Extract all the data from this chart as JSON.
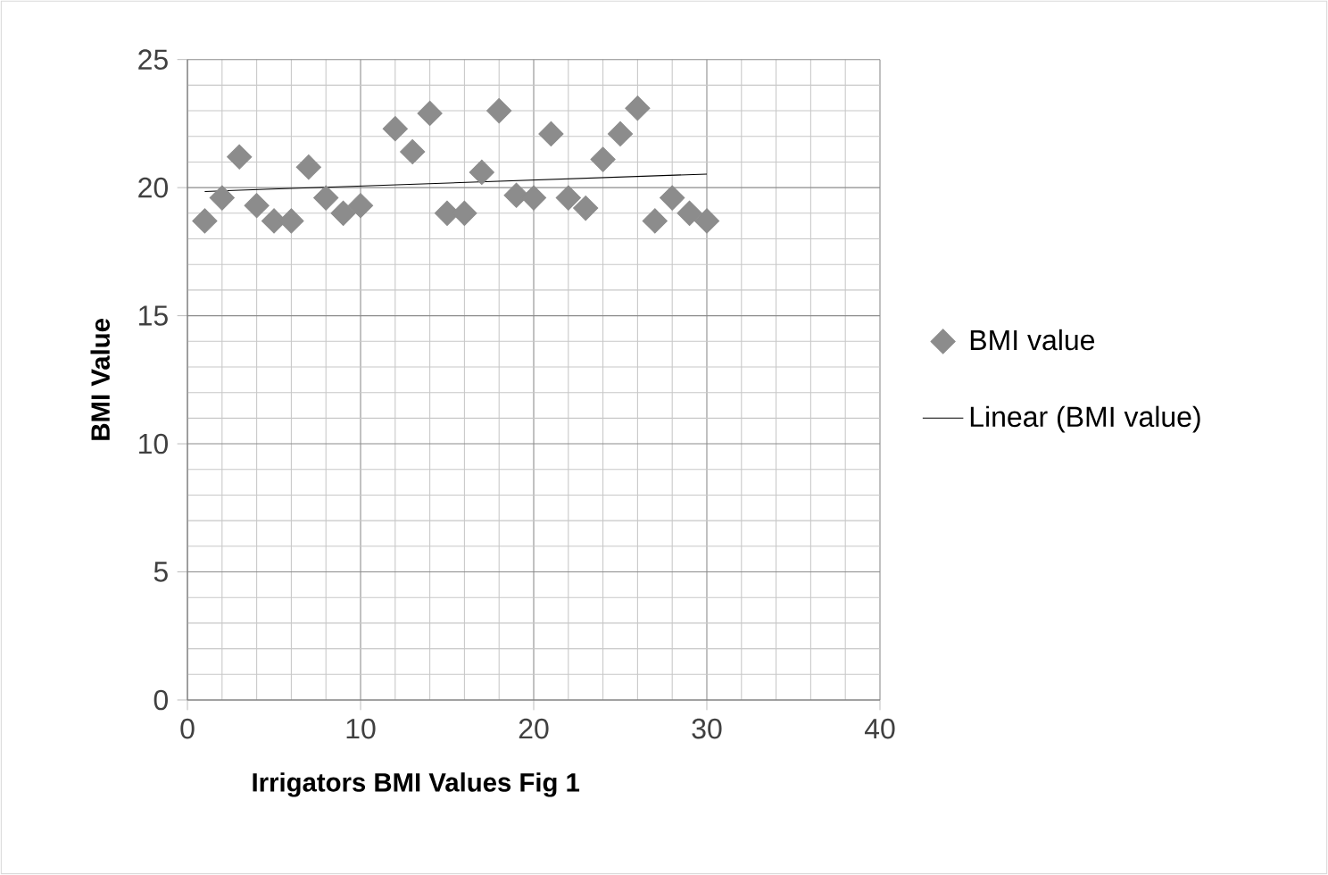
{
  "chart_data": {
    "type": "scatter",
    "xlabel": "Irrigators BMI Values Fig 1",
    "ylabel": "BMI Value",
    "xlim": [
      0,
      40
    ],
    "ylim": [
      0,
      25
    ],
    "xticks": [
      0,
      10,
      20,
      30,
      40
    ],
    "yticks": [
      0,
      5,
      10,
      15,
      20,
      25
    ],
    "grid": true,
    "legend": "right",
    "series": [
      {
        "name": "BMI value",
        "marker": "diamond",
        "color": "#8c8c8c",
        "x": [
          1,
          2,
          3,
          4,
          5,
          6,
          7,
          8,
          9,
          10,
          12,
          13,
          14,
          15,
          16,
          17,
          18,
          19,
          20,
          21,
          22,
          23,
          24,
          25,
          26,
          27,
          28,
          29,
          30
        ],
        "values": [
          18.7,
          19.6,
          21.2,
          19.3,
          18.7,
          18.7,
          20.8,
          19.6,
          19.0,
          19.3,
          22.3,
          21.4,
          22.9,
          19.0,
          19.0,
          20.6,
          23.0,
          19.7,
          19.6,
          22.1,
          19.6,
          19.2,
          21.1,
          22.1,
          23.1,
          18.7,
          19.6,
          19.0,
          18.7
        ]
      },
      {
        "name": "Linear (BMI value)",
        "type": "line",
        "color": "#000000",
        "x": [
          1,
          30
        ],
        "values": [
          19.85,
          20.53
        ]
      }
    ]
  }
}
